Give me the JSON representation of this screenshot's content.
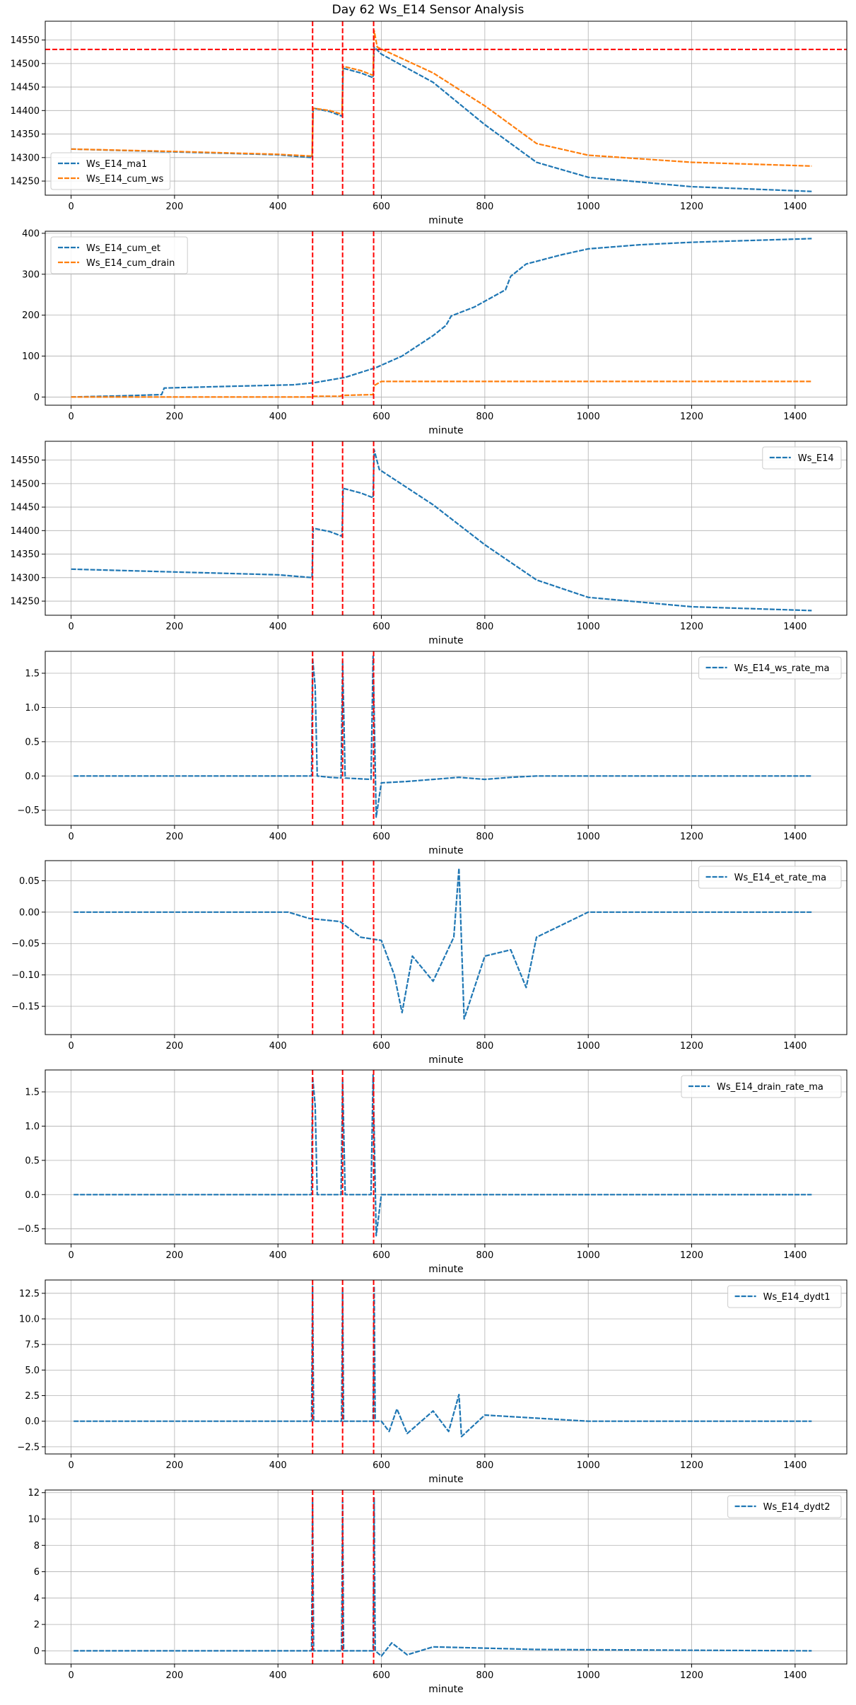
{
  "title": "Day 62 Ws_E14 Sensor Analysis",
  "colors": {
    "blue": "#1f77b4",
    "orange": "#ff7f0e",
    "red": "#ff0000",
    "grid": "#b0b0b0"
  },
  "event_minutes": [
    467,
    525,
    585
  ],
  "chart_data": [
    {
      "type": "line",
      "xlabel": "minute",
      "xlim": [
        -50,
        1500
      ],
      "ylim": [
        14220,
        14590
      ],
      "xticks": [
        0,
        200,
        400,
        600,
        800,
        1000,
        1200,
        1400
      ],
      "yticks": [
        14250,
        14300,
        14350,
        14400,
        14450,
        14500,
        14550
      ],
      "hline": 14530,
      "legend": "lower-left",
      "grid": true,
      "series": [
        {
          "name": "Ws_E14_ma1",
          "color": "blue",
          "points": [
            [
              0,
              14318
            ],
            [
              200,
              14312
            ],
            [
              400,
              14306
            ],
            [
              466,
              14300
            ],
            [
              468,
              14405
            ],
            [
              500,
              14398
            ],
            [
              524,
              14388
            ],
            [
              526,
              14490
            ],
            [
              560,
              14480
            ],
            [
              584,
              14470
            ],
            [
              586,
              14535
            ],
            [
              600,
              14520
            ],
            [
              700,
              14460
            ],
            [
              800,
              14370
            ],
            [
              900,
              14290
            ],
            [
              1000,
              14258
            ],
            [
              1200,
              14238
            ],
            [
              1432,
              14228
            ]
          ]
        },
        {
          "name": "Ws_E14_cum_ws",
          "color": "orange",
          "points": [
            [
              0,
              14318
            ],
            [
              200,
              14313
            ],
            [
              400,
              14307
            ],
            [
              466,
              14303
            ],
            [
              468,
              14405
            ],
            [
              500,
              14400
            ],
            [
              524,
              14392
            ],
            [
              526,
              14494
            ],
            [
              560,
              14485
            ],
            [
              584,
              14475
            ],
            [
              586,
              14570
            ],
            [
              592,
              14535
            ],
            [
              700,
              14480
            ],
            [
              800,
              14410
            ],
            [
              900,
              14330
            ],
            [
              1000,
              14305
            ],
            [
              1200,
              14290
            ],
            [
              1432,
              14282
            ]
          ]
        }
      ]
    },
    {
      "type": "line",
      "xlabel": "minute",
      "xlim": [
        -50,
        1500
      ],
      "ylim": [
        -20,
        405
      ],
      "xticks": [
        0,
        200,
        400,
        600,
        800,
        1000,
        1200,
        1400
      ],
      "yticks": [
        0,
        100,
        200,
        300,
        400
      ],
      "legend": "upper-left",
      "grid": true,
      "series": [
        {
          "name": "Ws_E14_cum_et",
          "color": "blue",
          "points": [
            [
              0,
              0
            ],
            [
              100,
              3
            ],
            [
              175,
              6
            ],
            [
              180,
              22
            ],
            [
              300,
              26
            ],
            [
              430,
              30
            ],
            [
              470,
              35
            ],
            [
              530,
              48
            ],
            [
              590,
              72
            ],
            [
              640,
              100
            ],
            [
              700,
              150
            ],
            [
              725,
              175
            ],
            [
              735,
              198
            ],
            [
              780,
              220
            ],
            [
              840,
              262
            ],
            [
              850,
              295
            ],
            [
              880,
              325
            ],
            [
              950,
              348
            ],
            [
              1000,
              362
            ],
            [
              1100,
              372
            ],
            [
              1200,
              378
            ],
            [
              1432,
              387
            ]
          ]
        },
        {
          "name": "Ws_E14_cum_drain",
          "color": "orange",
          "points": [
            [
              0,
              0
            ],
            [
              466,
              0
            ],
            [
              470,
              2
            ],
            [
              520,
              2
            ],
            [
              525,
              4
            ],
            [
              584,
              6
            ],
            [
              586,
              28
            ],
            [
              600,
              38
            ],
            [
              1432,
              38
            ]
          ]
        }
      ]
    },
    {
      "type": "line",
      "xlabel": "minute",
      "xlim": [
        -50,
        1500
      ],
      "ylim": [
        14220,
        14590
      ],
      "xticks": [
        0,
        200,
        400,
        600,
        800,
        1000,
        1200,
        1400
      ],
      "yticks": [
        14250,
        14300,
        14350,
        14400,
        14450,
        14500,
        14550
      ],
      "legend": "upper-right",
      "grid": true,
      "series": [
        {
          "name": "Ws_E14",
          "color": "blue",
          "points": [
            [
              0,
              14318
            ],
            [
              200,
              14312
            ],
            [
              400,
              14306
            ],
            [
              466,
              14300
            ],
            [
              468,
              14405
            ],
            [
              500,
              14398
            ],
            [
              524,
              14388
            ],
            [
              526,
              14490
            ],
            [
              560,
              14480
            ],
            [
              584,
              14470
            ],
            [
              586,
              14572
            ],
            [
              596,
              14530
            ],
            [
              700,
              14455
            ],
            [
              800,
              14370
            ],
            [
              900,
              14295
            ],
            [
              1000,
              14258
            ],
            [
              1200,
              14238
            ],
            [
              1432,
              14230
            ]
          ]
        }
      ]
    },
    {
      "type": "line",
      "xlabel": "minute",
      "xlim": [
        -50,
        1500
      ],
      "ylim": [
        -0.72,
        1.82
      ],
      "xticks": [
        0,
        200,
        400,
        600,
        800,
        1000,
        1200,
        1400
      ],
      "yticks": [
        -0.5,
        0.0,
        0.5,
        1.0,
        1.5
      ],
      "legend": "upper-right",
      "grid": true,
      "series": [
        {
          "name": "Ws_E14_ws_rate_ma",
          "color": "blue",
          "points": [
            [
              5,
              0
            ],
            [
              465,
              0
            ],
            [
              467,
              1.72
            ],
            [
              472,
              1.3
            ],
            [
              476,
              0
            ],
            [
              500,
              -0.02
            ],
            [
              522,
              -0.03
            ],
            [
              525,
              1.68
            ],
            [
              530,
              -0.03
            ],
            [
              580,
              -0.05
            ],
            [
              584,
              1.75
            ],
            [
              590,
              -0.6
            ],
            [
              600,
              -0.1
            ],
            [
              650,
              -0.08
            ],
            [
              700,
              -0.05
            ],
            [
              750,
              -0.02
            ],
            [
              800,
              -0.05
            ],
            [
              850,
              -0.02
            ],
            [
              900,
              0
            ],
            [
              1432,
              0
            ]
          ]
        }
      ]
    },
    {
      "type": "line",
      "xlabel": "minute",
      "xlim": [
        -50,
        1500
      ],
      "ylim": [
        -0.195,
        0.082
      ],
      "xticks": [
        0,
        200,
        400,
        600,
        800,
        1000,
        1200,
        1400
      ],
      "yticks": [
        -0.15,
        -0.1,
        -0.05,
        0.0,
        0.05
      ],
      "legend": "upper-right",
      "grid": true,
      "series": [
        {
          "name": "Ws_E14_et_rate_ma",
          "color": "blue",
          "points": [
            [
              5,
              0
            ],
            [
              420,
              0
            ],
            [
              460,
              -0.01
            ],
            [
              520,
              -0.015
            ],
            [
              560,
              -0.04
            ],
            [
              600,
              -0.045
            ],
            [
              625,
              -0.1
            ],
            [
              640,
              -0.16
            ],
            [
              660,
              -0.07
            ],
            [
              700,
              -0.11
            ],
            [
              740,
              -0.04
            ],
            [
              750,
              0.07
            ],
            [
              760,
              -0.17
            ],
            [
              800,
              -0.07
            ],
            [
              850,
              -0.06
            ],
            [
              880,
              -0.12
            ],
            [
              900,
              -0.04
            ],
            [
              950,
              -0.02
            ],
            [
              1000,
              0
            ],
            [
              1432,
              0
            ]
          ]
        }
      ]
    },
    {
      "type": "line",
      "xlabel": "minute",
      "xlim": [
        -50,
        1500
      ],
      "ylim": [
        -0.72,
        1.82
      ],
      "xticks": [
        0,
        200,
        400,
        600,
        800,
        1000,
        1200,
        1400
      ],
      "yticks": [
        -0.5,
        0.0,
        0.5,
        1.0,
        1.5
      ],
      "legend": "upper-right",
      "grid": true,
      "series": [
        {
          "name": "Ws_E14_drain_rate_ma",
          "color": "blue",
          "points": [
            [
              5,
              0
            ],
            [
              465,
              0
            ],
            [
              467,
              1.72
            ],
            [
              472,
              1.3
            ],
            [
              476,
              0
            ],
            [
              522,
              0
            ],
            [
              525,
              1.68
            ],
            [
              530,
              0
            ],
            [
              580,
              0
            ],
            [
              584,
              1.75
            ],
            [
              590,
              -0.6
            ],
            [
              600,
              0
            ],
            [
              1432,
              0
            ]
          ]
        }
      ]
    },
    {
      "type": "line",
      "xlabel": "minute",
      "xlim": [
        -50,
        1500
      ],
      "ylim": [
        -3.2,
        13.8
      ],
      "xticks": [
        0,
        200,
        400,
        600,
        800,
        1000,
        1200,
        1400
      ],
      "yticks": [
        -2.5,
        0.0,
        2.5,
        5.0,
        7.5,
        10.0,
        12.5
      ],
      "legend": "upper-right",
      "grid": true,
      "series": [
        {
          "name": "Ws_E14_dydt1",
          "color": "blue",
          "points": [
            [
              5,
              0
            ],
            [
              465,
              0
            ],
            [
              467,
              13.2
            ],
            [
              469,
              0
            ],
            [
              523,
              0
            ],
            [
              525,
              13.0
            ],
            [
              527,
              0
            ],
            [
              584,
              0
            ],
            [
              586,
              13.2
            ],
            [
              588,
              0
            ],
            [
              600,
              0
            ],
            [
              615,
              -1.0
            ],
            [
              630,
              1.2
            ],
            [
              650,
              -1.2
            ],
            [
              700,
              1.0
            ],
            [
              730,
              -1.0
            ],
            [
              750,
              2.6
            ],
            [
              755,
              -1.5
            ],
            [
              800,
              0.6
            ],
            [
              900,
              0.3
            ],
            [
              1000,
              0
            ],
            [
              1432,
              0
            ]
          ]
        }
      ]
    },
    {
      "type": "line",
      "xlabel": "minute",
      "xlim": [
        -50,
        1500
      ],
      "ylim": [
        -1.0,
        12.2
      ],
      "xticks": [
        0,
        200,
        400,
        600,
        800,
        1000,
        1200,
        1400
      ],
      "yticks": [
        0,
        2,
        4,
        6,
        8,
        10,
        12
      ],
      "legend": "upper-right",
      "grid": true,
      "series": [
        {
          "name": "Ws_E14_dydt2",
          "color": "blue",
          "points": [
            [
              5,
              0
            ],
            [
              465,
              0
            ],
            [
              467,
              11.6
            ],
            [
              469,
              0
            ],
            [
              523,
              0
            ],
            [
              525,
              11.4
            ],
            [
              527,
              0
            ],
            [
              584,
              0
            ],
            [
              586,
              11.6
            ],
            [
              588,
              0
            ],
            [
              600,
              -0.4
            ],
            [
              620,
              0.6
            ],
            [
              650,
              -0.3
            ],
            [
              700,
              0.3
            ],
            [
              800,
              0.2
            ],
            [
              900,
              0.1
            ],
            [
              1432,
              0
            ]
          ]
        }
      ]
    }
  ]
}
